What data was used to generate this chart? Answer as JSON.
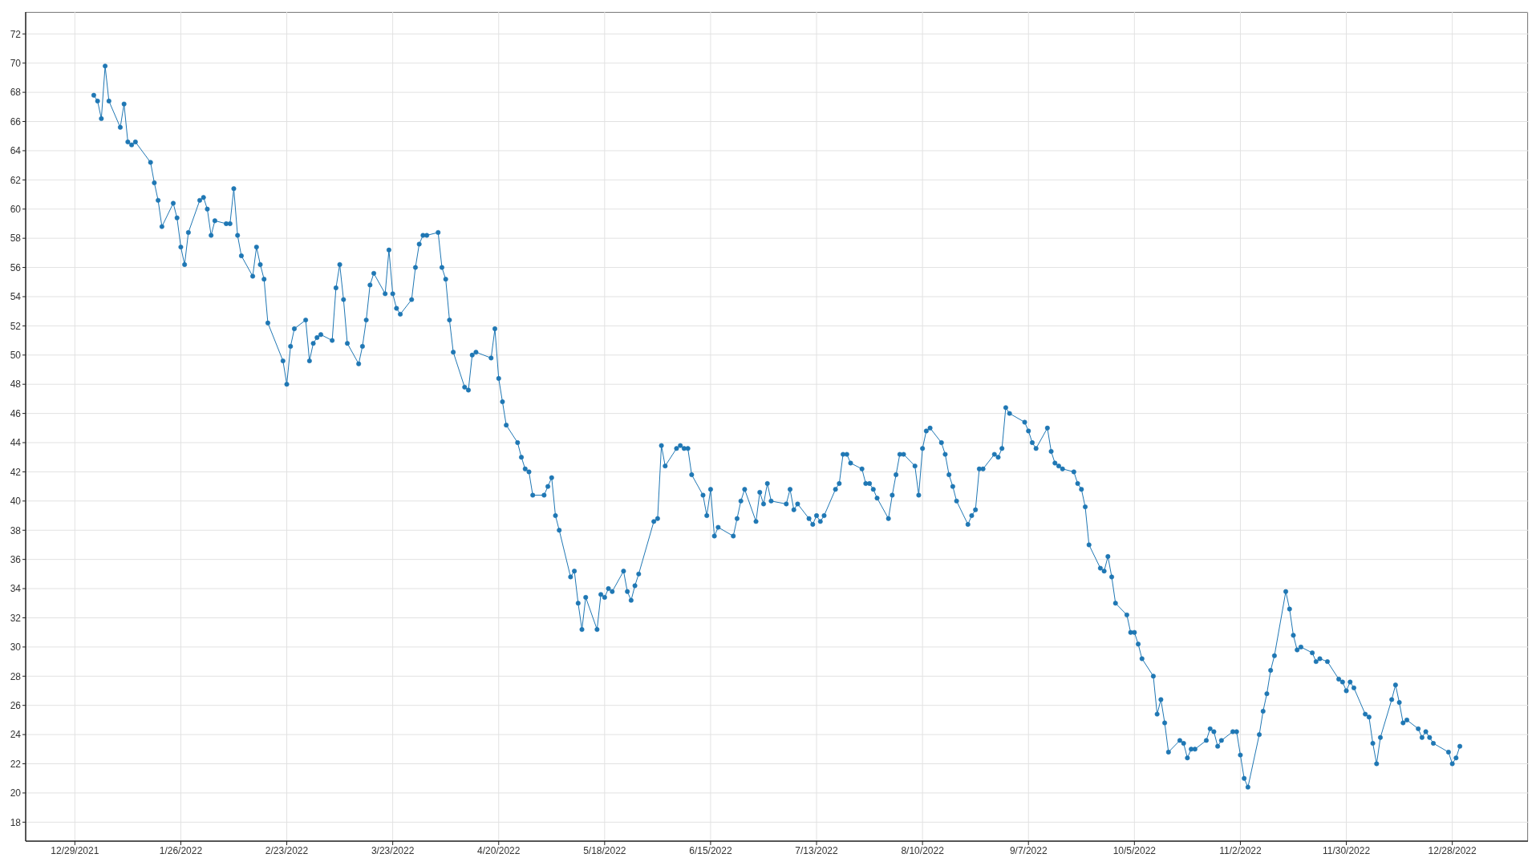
{
  "chart_data": {
    "type": "line",
    "x": [
      "2022-01-03",
      "2022-01-04",
      "2022-01-05",
      "2022-01-06",
      "2022-01-07",
      "2022-01-10",
      "2022-01-11",
      "2022-01-12",
      "2022-01-13",
      "2022-01-14",
      "2022-01-18",
      "2022-01-19",
      "2022-01-20",
      "2022-01-21",
      "2022-01-24",
      "2022-01-25",
      "2022-01-26",
      "2022-01-27",
      "2022-01-28",
      "2022-01-31",
      "2022-02-01",
      "2022-02-02",
      "2022-02-03",
      "2022-02-04",
      "2022-02-07",
      "2022-02-08",
      "2022-02-09",
      "2022-02-10",
      "2022-02-11",
      "2022-02-14",
      "2022-02-15",
      "2022-02-16",
      "2022-02-17",
      "2022-02-18",
      "2022-02-22",
      "2022-02-23",
      "2022-02-24",
      "2022-02-25",
      "2022-02-28",
      "2022-03-01",
      "2022-03-02",
      "2022-03-03",
      "2022-03-04",
      "2022-03-07",
      "2022-03-08",
      "2022-03-09",
      "2022-03-10",
      "2022-03-11",
      "2022-03-14",
      "2022-03-15",
      "2022-03-16",
      "2022-03-17",
      "2022-03-18",
      "2022-03-21",
      "2022-03-22",
      "2022-03-23",
      "2022-03-24",
      "2022-03-25",
      "2022-03-28",
      "2022-03-29",
      "2022-03-30",
      "2022-03-31",
      "2022-04-01",
      "2022-04-04",
      "2022-04-05",
      "2022-04-06",
      "2022-04-07",
      "2022-04-08",
      "2022-04-11",
      "2022-04-12",
      "2022-04-13",
      "2022-04-14",
      "2022-04-18",
      "2022-04-19",
      "2022-04-20",
      "2022-04-21",
      "2022-04-22",
      "2022-04-25",
      "2022-04-26",
      "2022-04-27",
      "2022-04-28",
      "2022-04-29",
      "2022-05-02",
      "2022-05-03",
      "2022-05-04",
      "2022-05-05",
      "2022-05-06",
      "2022-05-09",
      "2022-05-10",
      "2022-05-11",
      "2022-05-12",
      "2022-05-13",
      "2022-05-16",
      "2022-05-17",
      "2022-05-18",
      "2022-05-19",
      "2022-05-20",
      "2022-05-23",
      "2022-05-24",
      "2022-05-25",
      "2022-05-26",
      "2022-05-27",
      "2022-05-31",
      "2022-06-01",
      "2022-06-02",
      "2022-06-03",
      "2022-06-06",
      "2022-06-07",
      "2022-06-08",
      "2022-06-09",
      "2022-06-10",
      "2022-06-13",
      "2022-06-14",
      "2022-06-15",
      "2022-06-16",
      "2022-06-17",
      "2022-06-21",
      "2022-06-22",
      "2022-06-23",
      "2022-06-24",
      "2022-06-27",
      "2022-06-28",
      "2022-06-29",
      "2022-06-30",
      "2022-07-01",
      "2022-07-05",
      "2022-07-06",
      "2022-07-07",
      "2022-07-08",
      "2022-07-11",
      "2022-07-12",
      "2022-07-13",
      "2022-07-14",
      "2022-07-15",
      "2022-07-18",
      "2022-07-19",
      "2022-07-20",
      "2022-07-21",
      "2022-07-22",
      "2022-07-25",
      "2022-07-26",
      "2022-07-27",
      "2022-07-28",
      "2022-07-29",
      "2022-08-01",
      "2022-08-02",
      "2022-08-03",
      "2022-08-04",
      "2022-08-05",
      "2022-08-08",
      "2022-08-09",
      "2022-08-10",
      "2022-08-11",
      "2022-08-12",
      "2022-08-15",
      "2022-08-16",
      "2022-08-17",
      "2022-08-18",
      "2022-08-19",
      "2022-08-22",
      "2022-08-23",
      "2022-08-24",
      "2022-08-25",
      "2022-08-26",
      "2022-08-29",
      "2022-08-30",
      "2022-08-31",
      "2022-09-01",
      "2022-09-02",
      "2022-09-06",
      "2022-09-07",
      "2022-09-08",
      "2022-09-09",
      "2022-09-12",
      "2022-09-13",
      "2022-09-14",
      "2022-09-15",
      "2022-09-16",
      "2022-09-19",
      "2022-09-20",
      "2022-09-21",
      "2022-09-22",
      "2022-09-23",
      "2022-09-26",
      "2022-09-27",
      "2022-09-28",
      "2022-09-29",
      "2022-09-30",
      "2022-10-03",
      "2022-10-04",
      "2022-10-05",
      "2022-10-06",
      "2022-10-07",
      "2022-10-10",
      "2022-10-11",
      "2022-10-12",
      "2022-10-13",
      "2022-10-14",
      "2022-10-17",
      "2022-10-18",
      "2022-10-19",
      "2022-10-20",
      "2022-10-21",
      "2022-10-24",
      "2022-10-25",
      "2022-10-26",
      "2022-10-27",
      "2022-10-28",
      "2022-10-31",
      "2022-11-01",
      "2022-11-02",
      "2022-11-03",
      "2022-11-04",
      "2022-11-07",
      "2022-11-08",
      "2022-11-09",
      "2022-11-10",
      "2022-11-11",
      "2022-11-14",
      "2022-11-15",
      "2022-11-16",
      "2022-11-17",
      "2022-11-18",
      "2022-11-21",
      "2022-11-22",
      "2022-11-23",
      "2022-11-25",
      "2022-11-28",
      "2022-11-29",
      "2022-11-30",
      "2022-12-01",
      "2022-12-02",
      "2022-12-05",
      "2022-12-06",
      "2022-12-07",
      "2022-12-08",
      "2022-12-09",
      "2022-12-12",
      "2022-12-13",
      "2022-12-14",
      "2022-12-15",
      "2022-12-16",
      "2022-12-19",
      "2022-12-20",
      "2022-12-21",
      "2022-12-22",
      "2022-12-23",
      "2022-12-27",
      "2022-12-28",
      "2022-12-29",
      "2022-12-30"
    ],
    "values": [
      67.8,
      67.4,
      66.2,
      69.8,
      67.4,
      65.6,
      67.2,
      64.6,
      64.4,
      64.6,
      63.2,
      61.8,
      60.6,
      58.8,
      60.4,
      59.4,
      57.4,
      56.2,
      58.4,
      60.6,
      60.8,
      60.0,
      58.2,
      59.2,
      59.0,
      59.0,
      61.4,
      58.2,
      56.8,
      55.4,
      57.4,
      56.2,
      55.2,
      52.2,
      49.6,
      48.0,
      50.6,
      51.8,
      52.4,
      49.6,
      50.8,
      51.2,
      51.4,
      51.0,
      54.6,
      56.2,
      53.8,
      50.8,
      49.4,
      50.6,
      52.4,
      54.8,
      55.6,
      54.2,
      57.2,
      54.2,
      53.2,
      52.8,
      53.8,
      56.0,
      57.6,
      58.2,
      58.2,
      58.4,
      56.0,
      55.2,
      52.4,
      50.2,
      47.8,
      47.6,
      50.0,
      50.2,
      49.8,
      51.8,
      48.4,
      46.8,
      45.2,
      44.0,
      43.0,
      42.2,
      42.0,
      40.4,
      40.4,
      41.0,
      41.6,
      39.0,
      38.0,
      34.8,
      35.2,
      33.0,
      31.2,
      33.4,
      31.2,
      33.6,
      33.4,
      34.0,
      33.8,
      35.2,
      33.8,
      33.2,
      34.2,
      35.0,
      38.6,
      38.8,
      43.8,
      42.4,
      43.6,
      43.8,
      43.6,
      43.6,
      41.8,
      40.4,
      39.0,
      40.8,
      37.6,
      38.2,
      37.6,
      38.8,
      40.0,
      40.8,
      38.6,
      40.6,
      39.8,
      41.2,
      40.0,
      39.8,
      40.8,
      39.4,
      39.8,
      38.8,
      38.4,
      39.0,
      38.6,
      39.0,
      40.8,
      41.2,
      43.2,
      43.2,
      42.6,
      42.2,
      41.2,
      41.2,
      40.8,
      40.2,
      38.8,
      40.4,
      41.8,
      43.2,
      43.2,
      42.4,
      40.4,
      43.6,
      44.8,
      45.0,
      44.0,
      43.2,
      41.8,
      41.0,
      40.0,
      38.4,
      39.0,
      39.4,
      42.2,
      42.2,
      43.2,
      43.0,
      43.6,
      46.4,
      46.0,
      45.4,
      44.8,
      44.0,
      43.6,
      45.0,
      43.4,
      42.6,
      42.4,
      42.2,
      42.0,
      41.2,
      40.8,
      39.6,
      37.0,
      35.4,
      35.2,
      36.2,
      34.8,
      33.0,
      32.2,
      31.0,
      31.0,
      30.2,
      29.2,
      28.0,
      25.4,
      26.4,
      24.8,
      22.8,
      23.6,
      23.4,
      22.4,
      23.0,
      23.0,
      23.6,
      24.4,
      24.2,
      23.2,
      23.6,
      24.2,
      24.2,
      22.6,
      21.0,
      20.4,
      24.0,
      25.6,
      26.8,
      28.4,
      29.4,
      33.8,
      32.6,
      30.8,
      29.8,
      30.0,
      29.6,
      29.0,
      29.2,
      29.0,
      27.8,
      27.6,
      27.0,
      27.6,
      27.2,
      25.4,
      25.2,
      23.4,
      22.0,
      23.8,
      26.4,
      27.4,
      26.2,
      24.8,
      25.0,
      24.4,
      23.8,
      24.2,
      23.8,
      23.4,
      22.8,
      22.0,
      22.4,
      23.2
    ],
    "color": "#1f77b4",
    "xlim": [
      "2021-12-16",
      "2023-01-17"
    ],
    "xticks": [
      {
        "value": "2021-12-29",
        "label": "12/29/2021"
      },
      {
        "value": "2022-01-26",
        "label": "1/26/2022"
      },
      {
        "value": "2022-02-23",
        "label": "2/23/2022"
      },
      {
        "value": "2022-03-23",
        "label": "3/23/2022"
      },
      {
        "value": "2022-04-20",
        "label": "4/20/2022"
      },
      {
        "value": "2022-05-18",
        "label": "5/18/2022"
      },
      {
        "value": "2022-06-15",
        "label": "6/15/2022"
      },
      {
        "value": "2022-07-13",
        "label": "7/13/2022"
      },
      {
        "value": "2022-08-10",
        "label": "8/10/2022"
      },
      {
        "value": "2022-09-07",
        "label": "9/7/2022"
      },
      {
        "value": "2022-10-05",
        "label": "10/5/2022"
      },
      {
        "value": "2022-11-02",
        "label": "11/2/2022"
      },
      {
        "value": "2022-11-30",
        "label": "11/30/2022"
      },
      {
        "value": "2022-12-28",
        "label": "12/28/2022"
      }
    ],
    "ylim": [
      16.7,
      73.5
    ],
    "yticks": [
      18,
      20,
      22,
      24,
      26,
      28,
      30,
      32,
      34,
      36,
      38,
      40,
      42,
      44,
      46,
      48,
      50,
      52,
      54,
      56,
      58,
      60,
      62,
      64,
      66,
      68,
      70,
      72
    ],
    "grid": true,
    "marker": "circle",
    "line_style": "solid"
  }
}
